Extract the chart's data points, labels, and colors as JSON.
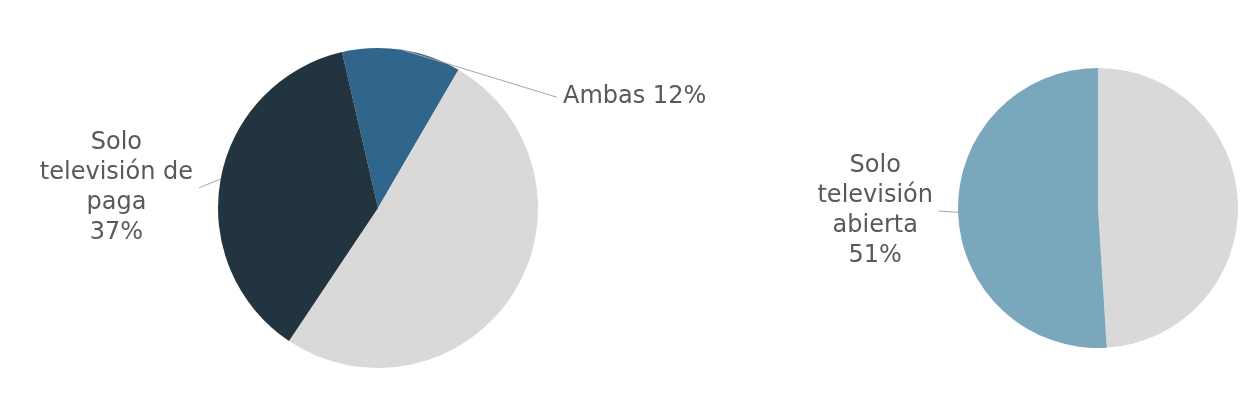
{
  "chart_data": [
    {
      "type": "pie",
      "categories": [
        "Ambas",
        null,
        "Solo televisión de paga"
      ],
      "values": [
        12,
        51,
        37
      ],
      "value_labels": [
        "12%",
        null,
        "37%"
      ],
      "colors": [
        "#31668c",
        "#d9d9d9",
        "#22343f"
      ]
    },
    {
      "type": "pie",
      "categories": [
        null,
        "Solo televisión abierta"
      ],
      "values": [
        49,
        51
      ],
      "value_labels": [
        null,
        "51%"
      ],
      "colors": [
        "#d9d9d9",
        "#79a7bc"
      ]
    }
  ]
}
